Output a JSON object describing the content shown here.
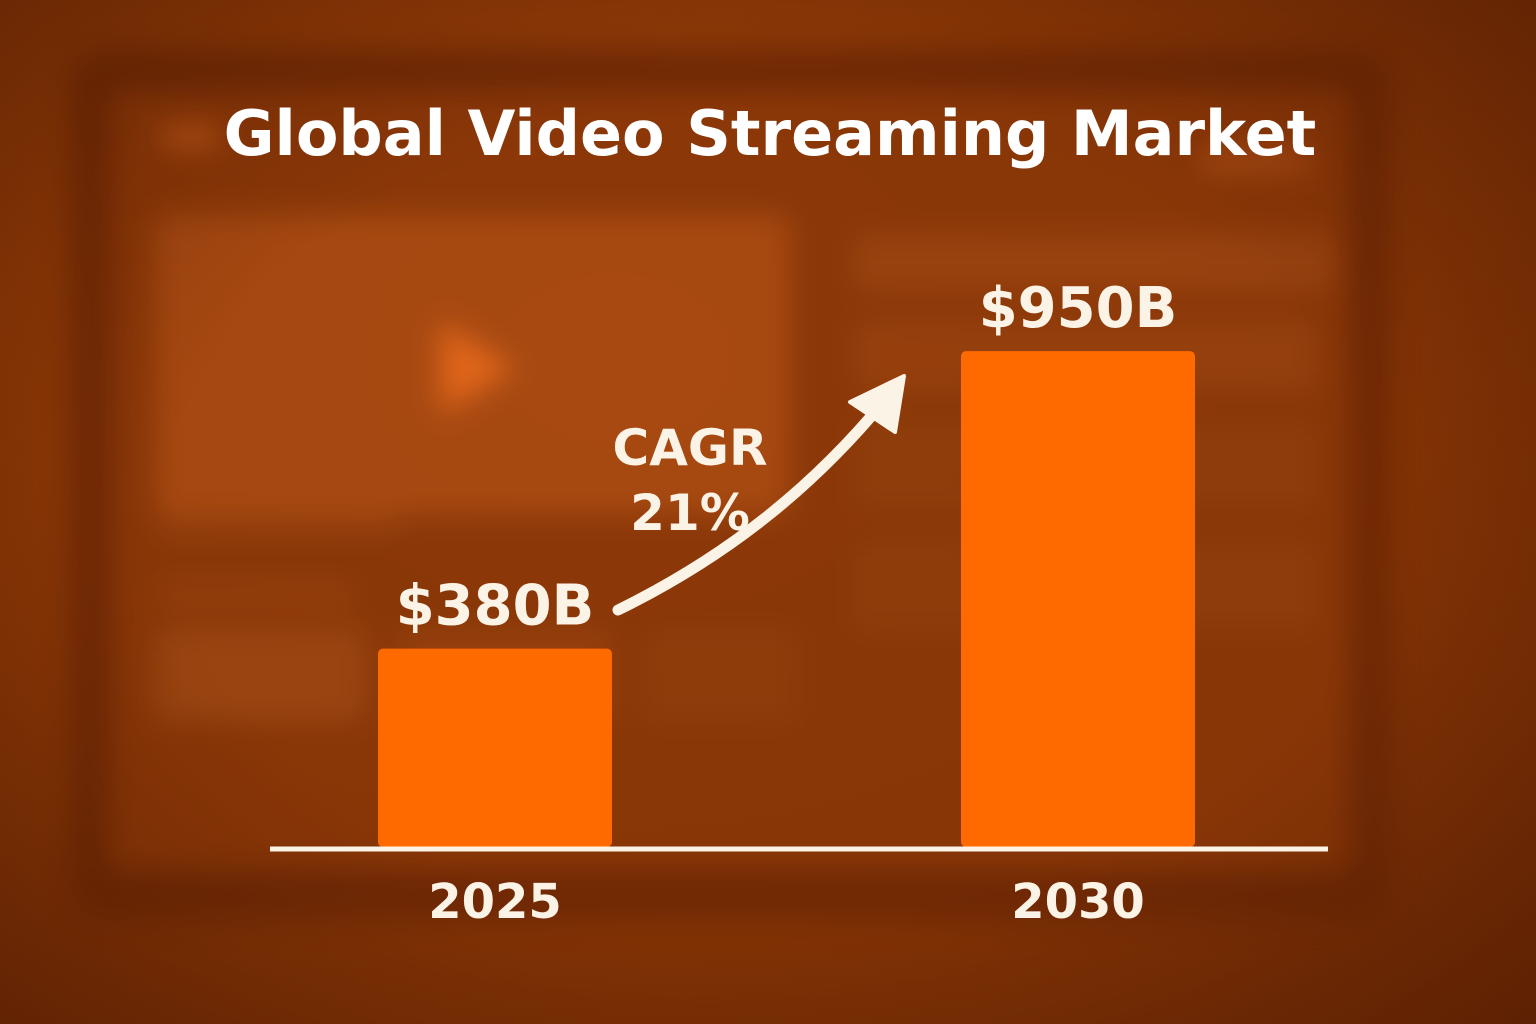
{
  "chart_data": {
    "type": "bar",
    "title": "Global Video Streaming Market",
    "categories": [
      "2025",
      "2030"
    ],
    "values": [
      380,
      950
    ],
    "value_labels": [
      "$380B",
      "$950B"
    ],
    "unit": "billion USD",
    "ylim": [
      0,
      1050
    ],
    "grid": false,
    "annotation": {
      "line1": "CAGR",
      "line2": "21%"
    },
    "colors": {
      "bar": "#ff6a00",
      "text": "#fbf3e6",
      "axis": "#fbf3e6",
      "background": "#8c3806"
    }
  },
  "icons": {
    "arrow": "trend-up-arrow-icon",
    "play": "play-icon"
  }
}
